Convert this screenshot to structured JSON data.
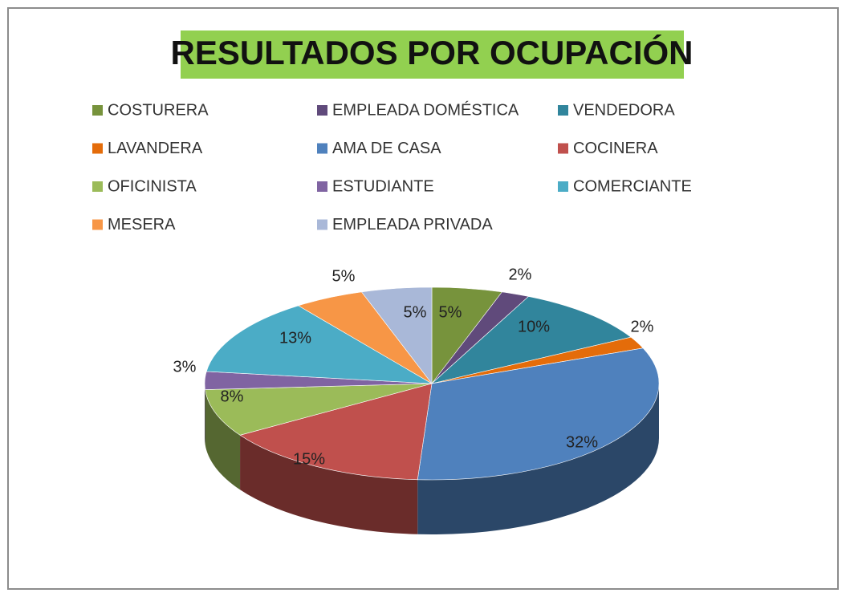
{
  "chart_data": {
    "type": "pie3d",
    "title": "RESULTADOS POR OCUPACIÓN",
    "categories": [
      "COSTURERA",
      "EMPLEADA DOMÉSTICA",
      "VENDEDORA",
      "LAVANDERA",
      "AMA DE CASA",
      "COCINERA",
      "OFICINISTA",
      "ESTUDIANTE",
      "COMERCIANTE",
      "MESERA",
      "EMPLEADA PRIVADA"
    ],
    "values": [
      5,
      2,
      10,
      2,
      32,
      15,
      8,
      3,
      13,
      5,
      5
    ],
    "value_labels": [
      "5%",
      "2%",
      "10%",
      "2%",
      "32%",
      "15%",
      "8%",
      "3%",
      "13%",
      "5%",
      "5%"
    ],
    "colors": [
      "#77933c",
      "#604a7b",
      "#31859c",
      "#e46c0a",
      "#4f81bd",
      "#c0504d",
      "#9bbb59",
      "#8064a2",
      "#4bacc6",
      "#f79646",
      "#a9b8d8"
    ],
    "legend": "top"
  }
}
